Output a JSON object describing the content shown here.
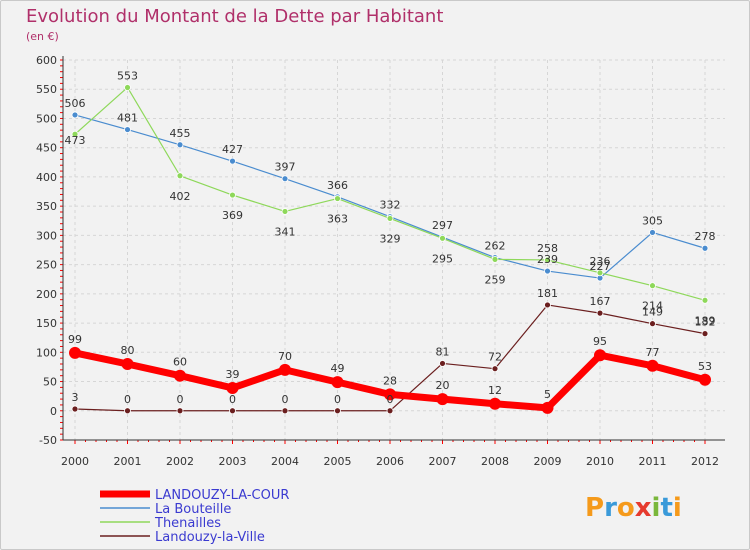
{
  "chart_data": {
    "type": "line",
    "title": "Evolution du Montant de la Dette par Habitant",
    "subtitle": "(en €)",
    "xlabel": "",
    "ylabel": "",
    "ylim": [
      -50,
      600
    ],
    "yticks": [
      "600",
      "550",
      "500",
      "450",
      "400",
      "350",
      "300",
      "250",
      "200",
      "150",
      "100",
      "50",
      "0",
      "-50"
    ],
    "grid": true,
    "categories": [
      "2000",
      "2001",
      "2002",
      "2003",
      "2004",
      "2005",
      "2006",
      "2007",
      "2008",
      "2009",
      "2010",
      "2011",
      "2012"
    ],
    "series": [
      {
        "name": "LANDOUZY-LA-COUR",
        "color": "#ff0000",
        "values": [
          99,
          80,
          60,
          39,
          70,
          49,
          28,
          20,
          12,
          5,
          95,
          77,
          53
        ]
      },
      {
        "name": "La Bouteille",
        "color": "#4a8ccf",
        "values": [
          506,
          481,
          455,
          427,
          397,
          366,
          332,
          297,
          262,
          239,
          227,
          305,
          278
        ]
      },
      {
        "name": "Thenailles",
        "color": "#8ed85a",
        "values": [
          473,
          553,
          402,
          369,
          341,
          363,
          329,
          295,
          259,
          258,
          236,
          214,
          189
        ]
      },
      {
        "name": "Landouzy-la-Ville",
        "color": "#6b1f1f",
        "values": [
          3,
          0,
          0,
          0,
          0,
          0,
          0,
          81,
          72,
          181,
          167,
          149,
          132
        ]
      }
    ]
  },
  "logo": {
    "text": "Proxiti"
  }
}
